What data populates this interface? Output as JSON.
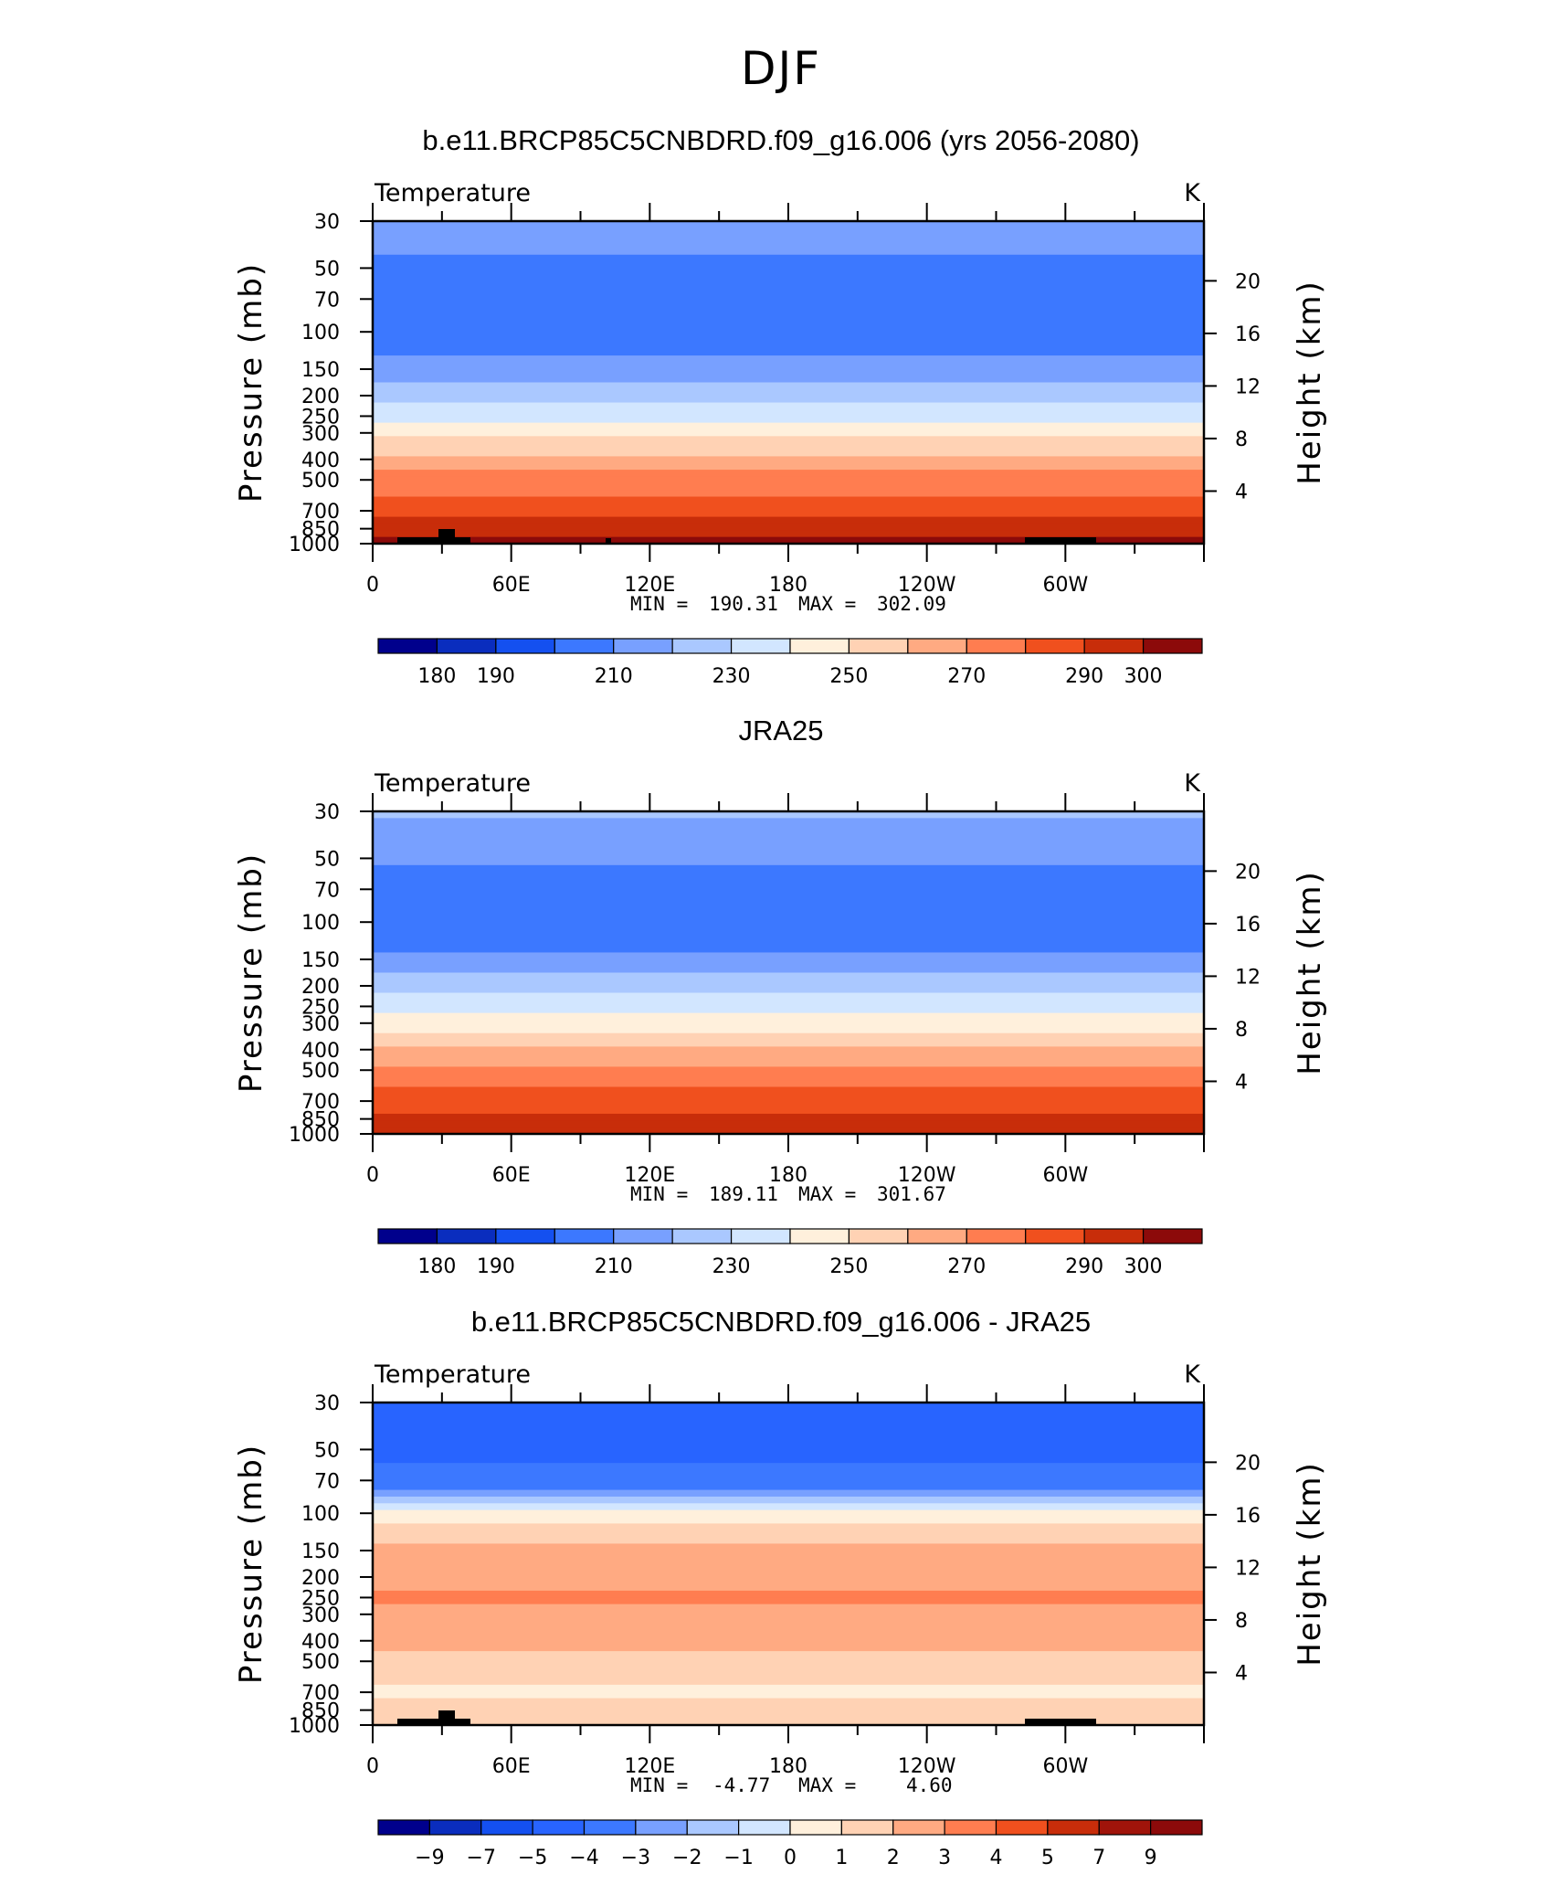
{
  "title": "DJF",
  "chart_data": [
    {
      "type": "heatmap",
      "title": "b.e11.BRCP85C5CNBDRD.f09_g16.006 (yrs 2056-2080)",
      "left_label": "Temperature",
      "right_label": "K",
      "ylabel": "Pressure  (mb)",
      "ylabel_right": "Height  (km)",
      "x_ticks": [
        "0",
        "60E",
        "120E",
        "180",
        "120W",
        "60W"
      ],
      "y_ticks": [
        "30",
        "50",
        "70",
        "100",
        "150",
        "200",
        "250",
        "300",
        "400",
        "500",
        "700",
        "850",
        "1000"
      ],
      "y_ticks_right": [
        "20",
        "16",
        "12",
        "8",
        "4"
      ],
      "min_label": "MIN =",
      "min_value": "190.31",
      "max_label": "MAX =",
      "max_value": "302.09",
      "colorbar_labels": [
        "180",
        "190",
        "210",
        "230",
        "250",
        "270",
        "290",
        "300"
      ],
      "colorbar_colors": [
        "#00008c",
        "#0a2dbe",
        "#1450f0",
        "#3c78ff",
        "#78a0ff",
        "#aac8ff",
        "#d2e6ff",
        "#fff0dc",
        "#ffd2b4",
        "#ffaa82",
        "#ff7d50",
        "#f0501e",
        "#c82d0a",
        "#8c0a0a"
      ],
      "pressure_levels": [
        30,
        50,
        70,
        100,
        150,
        200,
        250,
        300,
        400,
        500,
        700,
        850,
        1000
      ],
      "level_values": [
        207,
        197,
        193,
        194,
        203,
        216,
        226,
        236,
        253,
        264,
        276,
        284,
        292
      ]
    },
    {
      "type": "heatmap",
      "title": "JRA25",
      "left_label": "Temperature",
      "right_label": "K",
      "ylabel": "Pressure  (mb)",
      "ylabel_right": "Height  (km)",
      "x_ticks": [
        "0",
        "60E",
        "120E",
        "180",
        "120W",
        "60W"
      ],
      "y_ticks": [
        "30",
        "50",
        "70",
        "100",
        "150",
        "200",
        "250",
        "300",
        "400",
        "500",
        "700",
        "850",
        "1000"
      ],
      "y_ticks_right": [
        "20",
        "16",
        "12",
        "8",
        "4"
      ],
      "min_label": "MIN =",
      "min_value": "189.11",
      "max_label": "MAX =",
      "max_value": "301.67",
      "colorbar_labels": [
        "180",
        "190",
        "210",
        "230",
        "250",
        "270",
        "290",
        "300"
      ],
      "colorbar_colors": [
        "#00008c",
        "#0a2dbe",
        "#1450f0",
        "#3c78ff",
        "#78a0ff",
        "#aac8ff",
        "#d2e6ff",
        "#fff0dc",
        "#ffd2b4",
        "#ffaa82",
        "#ff7d50",
        "#f0501e",
        "#c82d0a",
        "#8c0a0a"
      ],
      "pressure_levels": [
        30,
        50,
        70,
        100,
        150,
        200,
        250,
        300,
        400,
        500,
        700,
        850,
        1000
      ],
      "level_values": [
        212,
        201,
        194,
        192,
        202,
        216,
        226,
        236,
        252,
        262,
        275,
        283,
        290
      ]
    },
    {
      "type": "heatmap",
      "title": "b.e11.BRCP85C5CNBDRD.f09_g16.006 - JRA25",
      "left_label": "Temperature",
      "right_label": "K",
      "ylabel": "Pressure  (mb)",
      "ylabel_right": "Height  (km)",
      "x_ticks": [
        "0",
        "60E",
        "120E",
        "180",
        "120W",
        "60W"
      ],
      "y_ticks": [
        "30",
        "50",
        "70",
        "100",
        "150",
        "200",
        "250",
        "300",
        "400",
        "500",
        "700",
        "850",
        "1000"
      ],
      "y_ticks_right": [
        "20",
        "16",
        "12",
        "8",
        "4"
      ],
      "min_label": "MIN =",
      "min_value": "-4.77",
      "max_label": "MAX =",
      "max_value": "4.60",
      "colorbar_labels": [
        "−9",
        "−7",
        "−5",
        "−4",
        "−3",
        "−2",
        "−1",
        "0",
        "1",
        "2",
        "3",
        "4",
        "5",
        "7",
        "9"
      ],
      "colorbar_colors": [
        "#00008c",
        "#0a2dbe",
        "#1450f0",
        "#2864ff",
        "#3c78ff",
        "#78a0ff",
        "#aac8ff",
        "#d2e6ff",
        "#fff0dc",
        "#ffd2b4",
        "#ffaa82",
        "#ff7d50",
        "#f0501e",
        "#c82d0a",
        "#a0140a",
        "#8c0a0a"
      ],
      "pressure_levels": [
        30,
        50,
        70,
        100,
        150,
        200,
        250,
        300,
        400,
        500,
        700,
        850,
        1000
      ],
      "level_values": [
        -4.5,
        -4.2,
        -3.8,
        0.5,
        2.5,
        2.8,
        3.1,
        2.9,
        2.4,
        1.8,
        0.8,
        1.5,
        1.6
      ]
    }
  ]
}
